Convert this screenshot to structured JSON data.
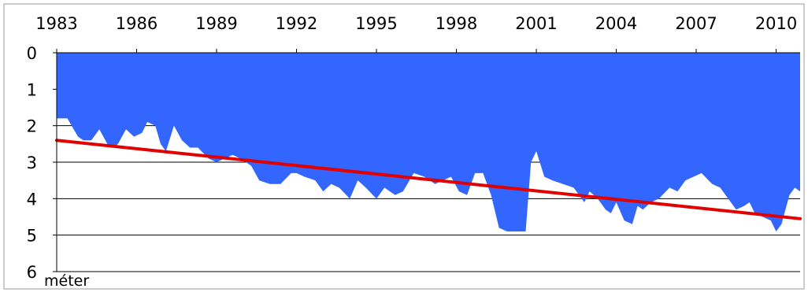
{
  "chart_data": {
    "type": "area",
    "ylabel": "méter",
    "xlim": [
      1983,
      2010.9
    ],
    "ylim": [
      0,
      6
    ],
    "y_inverted": true,
    "x_ticks": [
      "1983",
      "1986",
      "1989",
      "1992",
      "1995",
      "1998",
      "2001",
      "2004",
      "2007",
      "2010"
    ],
    "y_ticks": [
      "0",
      "1",
      "2",
      "3",
      "4",
      "5",
      "6"
    ],
    "grid": "horizontal",
    "colors": {
      "area": "#3366ff",
      "trend": "#e00000",
      "grid": "#000000",
      "frame": "#999999"
    },
    "series": [
      {
        "type": "area",
        "x": [
          1983.0,
          1983.4,
          1983.8,
          1984.0,
          1984.3,
          1984.6,
          1984.9,
          1985.1,
          1985.3,
          1985.6,
          1985.9,
          1986.2,
          1986.4,
          1986.7,
          1986.9,
          1987.1,
          1987.4,
          1987.7,
          1988.0,
          1988.3,
          1988.7,
          1989.0,
          1989.3,
          1989.6,
          1989.9,
          1990.3,
          1990.6,
          1991.0,
          1991.4,
          1991.8,
          1992.0,
          1992.3,
          1992.7,
          1993.0,
          1993.3,
          1993.6,
          1994.0,
          1994.3,
          1994.6,
          1995.0,
          1995.3,
          1995.7,
          1996.0,
          1996.4,
          1996.8,
          1997.2,
          1997.5,
          1997.8,
          1998.1,
          1998.4,
          1998.7,
          1999.0,
          1999.3,
          1999.6,
          1999.9,
          2000.1,
          2000.4,
          2000.6,
          2000.8,
          2001.0,
          2001.3,
          2001.6,
          2002.0,
          2002.4,
          2002.8,
          2003.0,
          2003.3,
          2003.6,
          2003.8,
          2004.0,
          2004.3,
          2004.6,
          2004.8,
          2005.0,
          2005.3,
          2005.6,
          2006.0,
          2006.3,
          2006.6,
          2006.9,
          2007.2,
          2007.6,
          2007.9,
          2008.2,
          2008.5,
          2008.8,
          2009.0,
          2009.2,
          2009.5,
          2009.8,
          2010.0,
          2010.2,
          2010.5,
          2010.7,
          2010.9
        ],
        "y": [
          1.8,
          1.8,
          2.3,
          2.4,
          2.4,
          2.1,
          2.5,
          2.6,
          2.5,
          2.1,
          2.3,
          2.2,
          1.9,
          2.0,
          2.5,
          2.7,
          2.0,
          2.4,
          2.6,
          2.6,
          2.9,
          3.0,
          2.9,
          2.8,
          2.9,
          3.1,
          3.5,
          3.6,
          3.6,
          3.3,
          3.3,
          3.4,
          3.5,
          3.8,
          3.6,
          3.7,
          4.0,
          3.5,
          3.7,
          4.0,
          3.7,
          3.9,
          3.8,
          3.3,
          3.4,
          3.6,
          3.5,
          3.4,
          3.8,
          3.9,
          3.3,
          3.3,
          3.9,
          4.8,
          4.9,
          4.9,
          4.9,
          4.9,
          3.0,
          2.7,
          3.4,
          3.5,
          3.6,
          3.7,
          4.1,
          3.8,
          4.0,
          4.3,
          4.4,
          4.1,
          4.6,
          4.7,
          4.2,
          4.3,
          4.1,
          4.0,
          3.7,
          3.8,
          3.5,
          3.4,
          3.3,
          3.6,
          3.7,
          4.0,
          4.3,
          4.2,
          4.1,
          4.4,
          4.5,
          4.6,
          4.9,
          4.7,
          3.9,
          3.7,
          3.8
        ]
      },
      {
        "type": "line",
        "x": [
          1983.0,
          2010.9
        ],
        "y": [
          2.4,
          4.55
        ]
      }
    ]
  }
}
